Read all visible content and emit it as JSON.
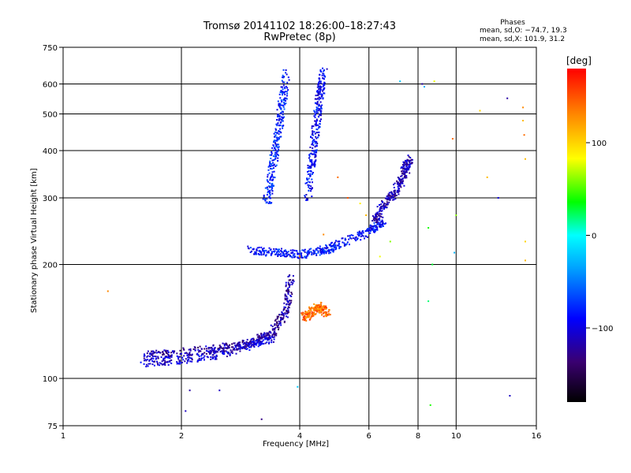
{
  "title": {
    "line1": "Tromsø 20141102 18:26:00–18:27:43",
    "line2": "RwPretec (8p)"
  },
  "phases_box": {
    "title": "Phases",
    "o_line": "mean, sd,O: −74.7, 19.3",
    "x_line": "mean, sd,X: 101.9, 31.2"
  },
  "chart_data": {
    "type": "scatter",
    "xlabel": "Frequency [MHz]",
    "ylabel": "Stationary phase Virtual Height [km]",
    "xscale": "log",
    "yscale": "log",
    "xlim": [
      1,
      16
    ],
    "ylim": [
      75,
      750
    ],
    "xticks": [
      1,
      2,
      4,
      6,
      8,
      10,
      16
    ],
    "yticks": [
      75,
      100,
      200,
      300,
      400,
      500,
      600,
      750
    ],
    "grid": true,
    "colorbar": {
      "title": "[deg]",
      "range": [
        -180,
        180
      ],
      "ticks": [
        100,
        0,
        -100
      ],
      "colormap": "rainbow"
    },
    "traces": [
      {
        "name_hint": "E/F1 band",
        "f": [
          1.6,
          2.0,
          2.5,
          3.0,
          3.4,
          3.7,
          3.8
        ],
        "h": [
          115,
          117,
          120,
          124,
          132,
          150,
          185
        ],
        "phase": -120
      },
      {
        "name_hint": "E/F1 band 2",
        "f": [
          1.6,
          2.0,
          2.5,
          3.0,
          3.4
        ],
        "h": [
          110,
          112,
          116,
          122,
          128
        ],
        "phase": -105
      },
      {
        "name_hint": "F1 ledge",
        "f": [
          3.0,
          3.5,
          4.0,
          4.6,
          5.0,
          6.0,
          6.5
        ],
        "h": [
          218,
          215,
          212,
          218,
          225,
          245,
          260
        ],
        "phase": -85
      },
      {
        "name_hint": "O trace tall",
        "f": [
          3.3,
          3.4,
          3.5,
          3.6,
          3.7
        ],
        "h": [
          290,
          350,
          430,
          520,
          640
        ],
        "phase": -80
      },
      {
        "name_hint": "X trace tall",
        "f": [
          4.2,
          4.3,
          4.4,
          4.5,
          4.6
        ],
        "h": [
          300,
          380,
          460,
          560,
          650
        ],
        "phase": -90
      },
      {
        "name_hint": "F2 spread",
        "f": [
          6.2,
          6.6,
          7.0,
          7.4,
          7.6
        ],
        "h": [
          260,
          290,
          310,
          350,
          380
        ],
        "phase": -115
      },
      {
        "name_hint": "orange cluster",
        "f": [
          4.1,
          4.3,
          4.5,
          4.7
        ],
        "h": [
          145,
          150,
          155,
          148
        ],
        "phase": 140
      }
    ],
    "scattered_points": [
      {
        "f": 1.3,
        "h": 170,
        "phase": 130
      },
      {
        "f": 2.05,
        "h": 82,
        "phase": -110
      },
      {
        "f": 2.1,
        "h": 93,
        "phase": -120
      },
      {
        "f": 2.5,
        "h": 93,
        "phase": -110
      },
      {
        "f": 3.2,
        "h": 78,
        "phase": -130
      },
      {
        "f": 3.95,
        "h": 95,
        "phase": -20
      },
      {
        "f": 4.0,
        "h": 210,
        "phase": 140
      },
      {
        "f": 4.6,
        "h": 240,
        "phase": 130
      },
      {
        "f": 5.0,
        "h": 340,
        "phase": 140
      },
      {
        "f": 5.3,
        "h": 300,
        "phase": 150
      },
      {
        "f": 5.7,
        "h": 290,
        "phase": 90
      },
      {
        "f": 5.9,
        "h": 270,
        "phase": 110
      },
      {
        "f": 6.4,
        "h": 210,
        "phase": 80
      },
      {
        "f": 6.8,
        "h": 230,
        "phase": 60
      },
      {
        "f": 7.2,
        "h": 610,
        "phase": -20
      },
      {
        "f": 8.2,
        "h": 600,
        "phase": -120
      },
      {
        "f": 8.3,
        "h": 590,
        "phase": -30
      },
      {
        "f": 8.8,
        "h": 610,
        "phase": 80
      },
      {
        "f": 8.5,
        "h": 250,
        "phase": 40
      },
      {
        "f": 8.7,
        "h": 200,
        "phase": 30
      },
      {
        "f": 8.5,
        "h": 160,
        "phase": 20
      },
      {
        "f": 8.6,
        "h": 85,
        "phase": 40
      },
      {
        "f": 9.8,
        "h": 430,
        "phase": 140
      },
      {
        "f": 10.0,
        "h": 270,
        "phase": 60
      },
      {
        "f": 9.9,
        "h": 215,
        "phase": -30
      },
      {
        "f": 11.5,
        "h": 510,
        "phase": 100
      },
      {
        "f": 12.0,
        "h": 340,
        "phase": 110
      },
      {
        "f": 12.8,
        "h": 300,
        "phase": -100
      },
      {
        "f": 13.5,
        "h": 550,
        "phase": -120
      },
      {
        "f": 13.7,
        "h": 90,
        "phase": -110
      },
      {
        "f": 14.8,
        "h": 520,
        "phase": 130
      },
      {
        "f": 14.8,
        "h": 480,
        "phase": 110
      },
      {
        "f": 14.9,
        "h": 440,
        "phase": 140
      },
      {
        "f": 15.0,
        "h": 380,
        "phase": 110
      },
      {
        "f": 15.0,
        "h": 230,
        "phase": 100
      },
      {
        "f": 15.0,
        "h": 205,
        "phase": 110
      }
    ]
  }
}
